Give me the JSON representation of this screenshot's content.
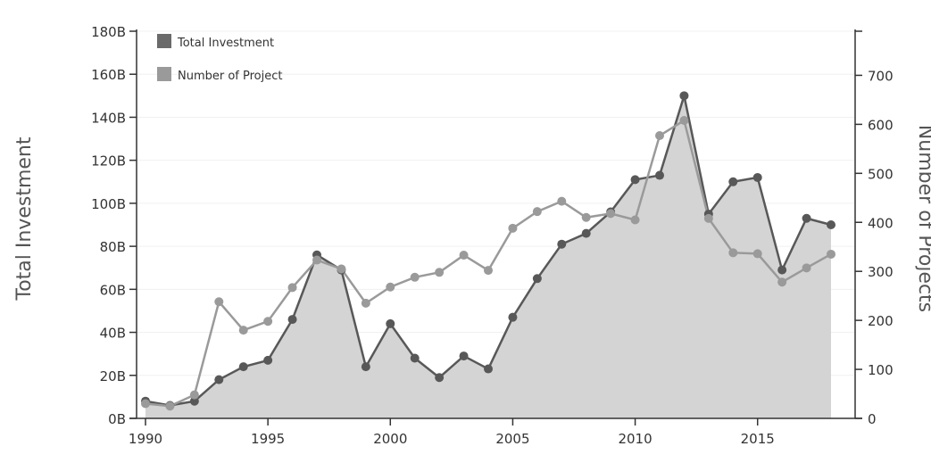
{
  "chart_data": {
    "type": "line",
    "title": "",
    "x": [
      1990,
      1991,
      1992,
      1993,
      1994,
      1995,
      1996,
      1997,
      1998,
      1999,
      2000,
      2001,
      2002,
      2003,
      2004,
      2005,
      2006,
      2007,
      2008,
      2009,
      2010,
      2011,
      2012,
      2013,
      2014,
      2015,
      2016,
      2017,
      2018
    ],
    "xlim": [
      1990,
      2018
    ],
    "x_ticks": [
      "1990",
      "1995",
      "2000",
      "2005",
      "2010",
      "2015"
    ],
    "ylabel_left": "Total Investment",
    "ylabel_right": "Number of Projects",
    "ylim_left": [
      0,
      180
    ],
    "ylim_right": [
      0,
      790
    ],
    "y_left_ticks": [
      "0B",
      "20B",
      "40B",
      "60B",
      "80B",
      "100B",
      "120B",
      "140B",
      "160B",
      "180B"
    ],
    "y_right_ticks": [
      "0",
      "100",
      "200",
      "300",
      "400",
      "500",
      "600",
      "700"
    ],
    "grid": "horizontal",
    "legend_position": "top-left",
    "series": [
      {
        "name": "Total Investment",
        "axis": "left",
        "unit": "B",
        "style": "area-line",
        "color": "#585858",
        "fill": "#d4d4d4",
        "values": [
          8,
          6,
          8,
          18,
          24,
          27,
          46,
          76,
          69,
          24,
          44,
          28,
          19,
          29,
          23,
          47,
          65,
          81,
          86,
          96,
          111,
          113,
          150,
          95,
          110,
          112,
          69,
          93,
          90
        ]
      },
      {
        "name": "Number of Project",
        "axis": "right",
        "style": "line",
        "color": "#9a9a9a",
        "values": [
          30,
          25,
          48,
          238,
          180,
          198,
          267,
          323,
          305,
          235,
          268,
          288,
          298,
          333,
          302,
          388,
          422,
          443,
          410,
          418,
          405,
          577,
          608,
          408,
          338,
          336,
          278,
          307,
          335
        ]
      }
    ]
  }
}
